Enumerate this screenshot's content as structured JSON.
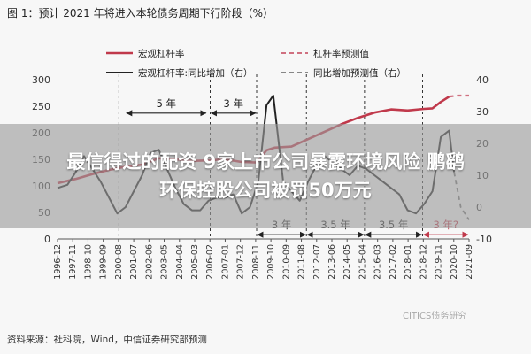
{
  "figure_title": "图 1：预计 2021 年将进入本轮债务周期下行阶段（%）",
  "banner": {
    "line1": "最信得过的配资 9家上市公司暴露环境风险 鹏鹞",
    "line2": "环保控股公司被罚50万元"
  },
  "source": "资料来源：社科院，Wind，中信证券研究部预测",
  "watermark": "CITICS债务研究",
  "colors": {
    "leverage": "#c0394b",
    "yoy": "#222222",
    "forecast_leverage": "#d07080",
    "forecast_yoy": "#777777",
    "annotation": "#222222",
    "background": "#f7f7f7"
  },
  "chart_data": {
    "type": "line",
    "x_tick_labels": [
      "1996-12",
      "1997-11",
      "1998-10",
      "1999-09",
      "2000-08",
      "2001-07",
      "2002-06",
      "2003-05",
      "2004-04",
      "2005-03",
      "2006-02",
      "2007-01",
      "2007-12",
      "2008-11",
      "2009-10",
      "2010-09",
      "2011-08",
      "2012-07",
      "2013-06",
      "2014-05",
      "2015-04",
      "2016-03",
      "2017-02",
      "2018-01",
      "2018-12",
      "2019-11",
      "2020-10",
      "2021-09"
    ],
    "y_left": {
      "ticks": [
        0,
        50,
        100,
        150,
        200,
        250,
        300
      ],
      "lim": [
        0,
        300
      ]
    },
    "y_right": {
      "ticks": [
        -10,
        0,
        10,
        20,
        30,
        40
      ],
      "lim": [
        -10,
        40
      ]
    },
    "legend": [
      "宏观杠杆率",
      "杠杆率预测值",
      "宏观杠杆率:同比增加（右）",
      "同比增加预测值（右）"
    ],
    "series": [
      {
        "name": "宏观杠杆率",
        "axis": "left",
        "style": "solid",
        "x": [
          1996.9,
          1998,
          1999,
          2000,
          2001,
          2002,
          2003,
          2004,
          2005,
          2006,
          2007,
          2008,
          2008.9,
          2009.5,
          2010,
          2011,
          2012,
          2013,
          2014,
          2015,
          2016,
          2017,
          2018,
          2019,
          2019.5,
          2020,
          2020.5
        ],
        "y": [
          105,
          113,
          122,
          130,
          136,
          140,
          152,
          150,
          147,
          148,
          150,
          145,
          144,
          167,
          172,
          174,
          188,
          202,
          216,
          228,
          238,
          244,
          242,
          245,
          246,
          258,
          268
        ]
      },
      {
        "name": "杠杆率预测值",
        "axis": "left",
        "style": "dashed",
        "x": [
          2020.5,
          2021,
          2021.7
        ],
        "y": [
          268,
          270,
          270
        ]
      },
      {
        "name": "宏观杠杆率:同比增加（右）",
        "axis": "right",
        "style": "solid",
        "x": [
          1996.9,
          1997.5,
          1998,
          1998.5,
          1999,
          1999.5,
          2000,
          2000.5,
          2001,
          2001.5,
          2002,
          2002.5,
          2003,
          2003.5,
          2004,
          2004.5,
          2005,
          2005.5,
          2006,
          2006.5,
          2007,
          2007.5,
          2008,
          2008.5,
          2009,
          2009.5,
          2009.9,
          2010.5,
          2011,
          2011.5,
          2012,
          2012.5,
          2013,
          2013.5,
          2014,
          2014.5,
          2015,
          2015.5,
          2016,
          2016.5,
          2017,
          2017.5,
          2018,
          2018.5,
          2019,
          2019.5,
          2020,
          2020.5,
          2020.8
        ],
        "y": [
          6,
          7,
          11,
          16,
          12,
          8,
          3,
          -2,
          0,
          5,
          10,
          17,
          18,
          12,
          6,
          1,
          -1,
          -1,
          2,
          3,
          3,
          4,
          -2,
          0,
          8,
          32,
          35,
          8,
          5,
          2,
          8,
          13,
          16,
          14,
          12,
          10,
          13,
          12,
          10,
          8,
          6,
          4,
          -1,
          -2,
          1,
          5,
          22,
          24,
          11
        ]
      },
      {
        "name": "同比增加预测值（右）",
        "axis": "right",
        "style": "dashed",
        "x": [
          2020.8,
          2021.2,
          2021.7
        ],
        "y": [
          11,
          0,
          -4
        ]
      }
    ],
    "vertical_dashed_lines_at": [
      2000.6,
      2006.1,
      2008.9,
      2011.9,
      2015.4,
      2018.9
    ],
    "annotations": [
      {
        "label": "5 年",
        "from": 2001.0,
        "to": 2005.9,
        "level": 237,
        "axis": "left"
      },
      {
        "label": "3 年",
        "from": 2006.1,
        "to": 2008.9,
        "level": 237,
        "axis": "left"
      },
      {
        "label": "3 年",
        "from": 2008.9,
        "to": 2011.9,
        "level": 8,
        "axis": "left"
      },
      {
        "label": "3.5 年",
        "from": 2011.9,
        "to": 2015.4,
        "level": 8,
        "axis": "left"
      },
      {
        "label": "3.5 年",
        "from": 2015.4,
        "to": 2018.9,
        "level": 8,
        "axis": "left"
      },
      {
        "label": "3 年?",
        "from": 2018.9,
        "to": 2021.7,
        "level": 8,
        "axis": "left",
        "color": "#c0394b"
      }
    ]
  }
}
